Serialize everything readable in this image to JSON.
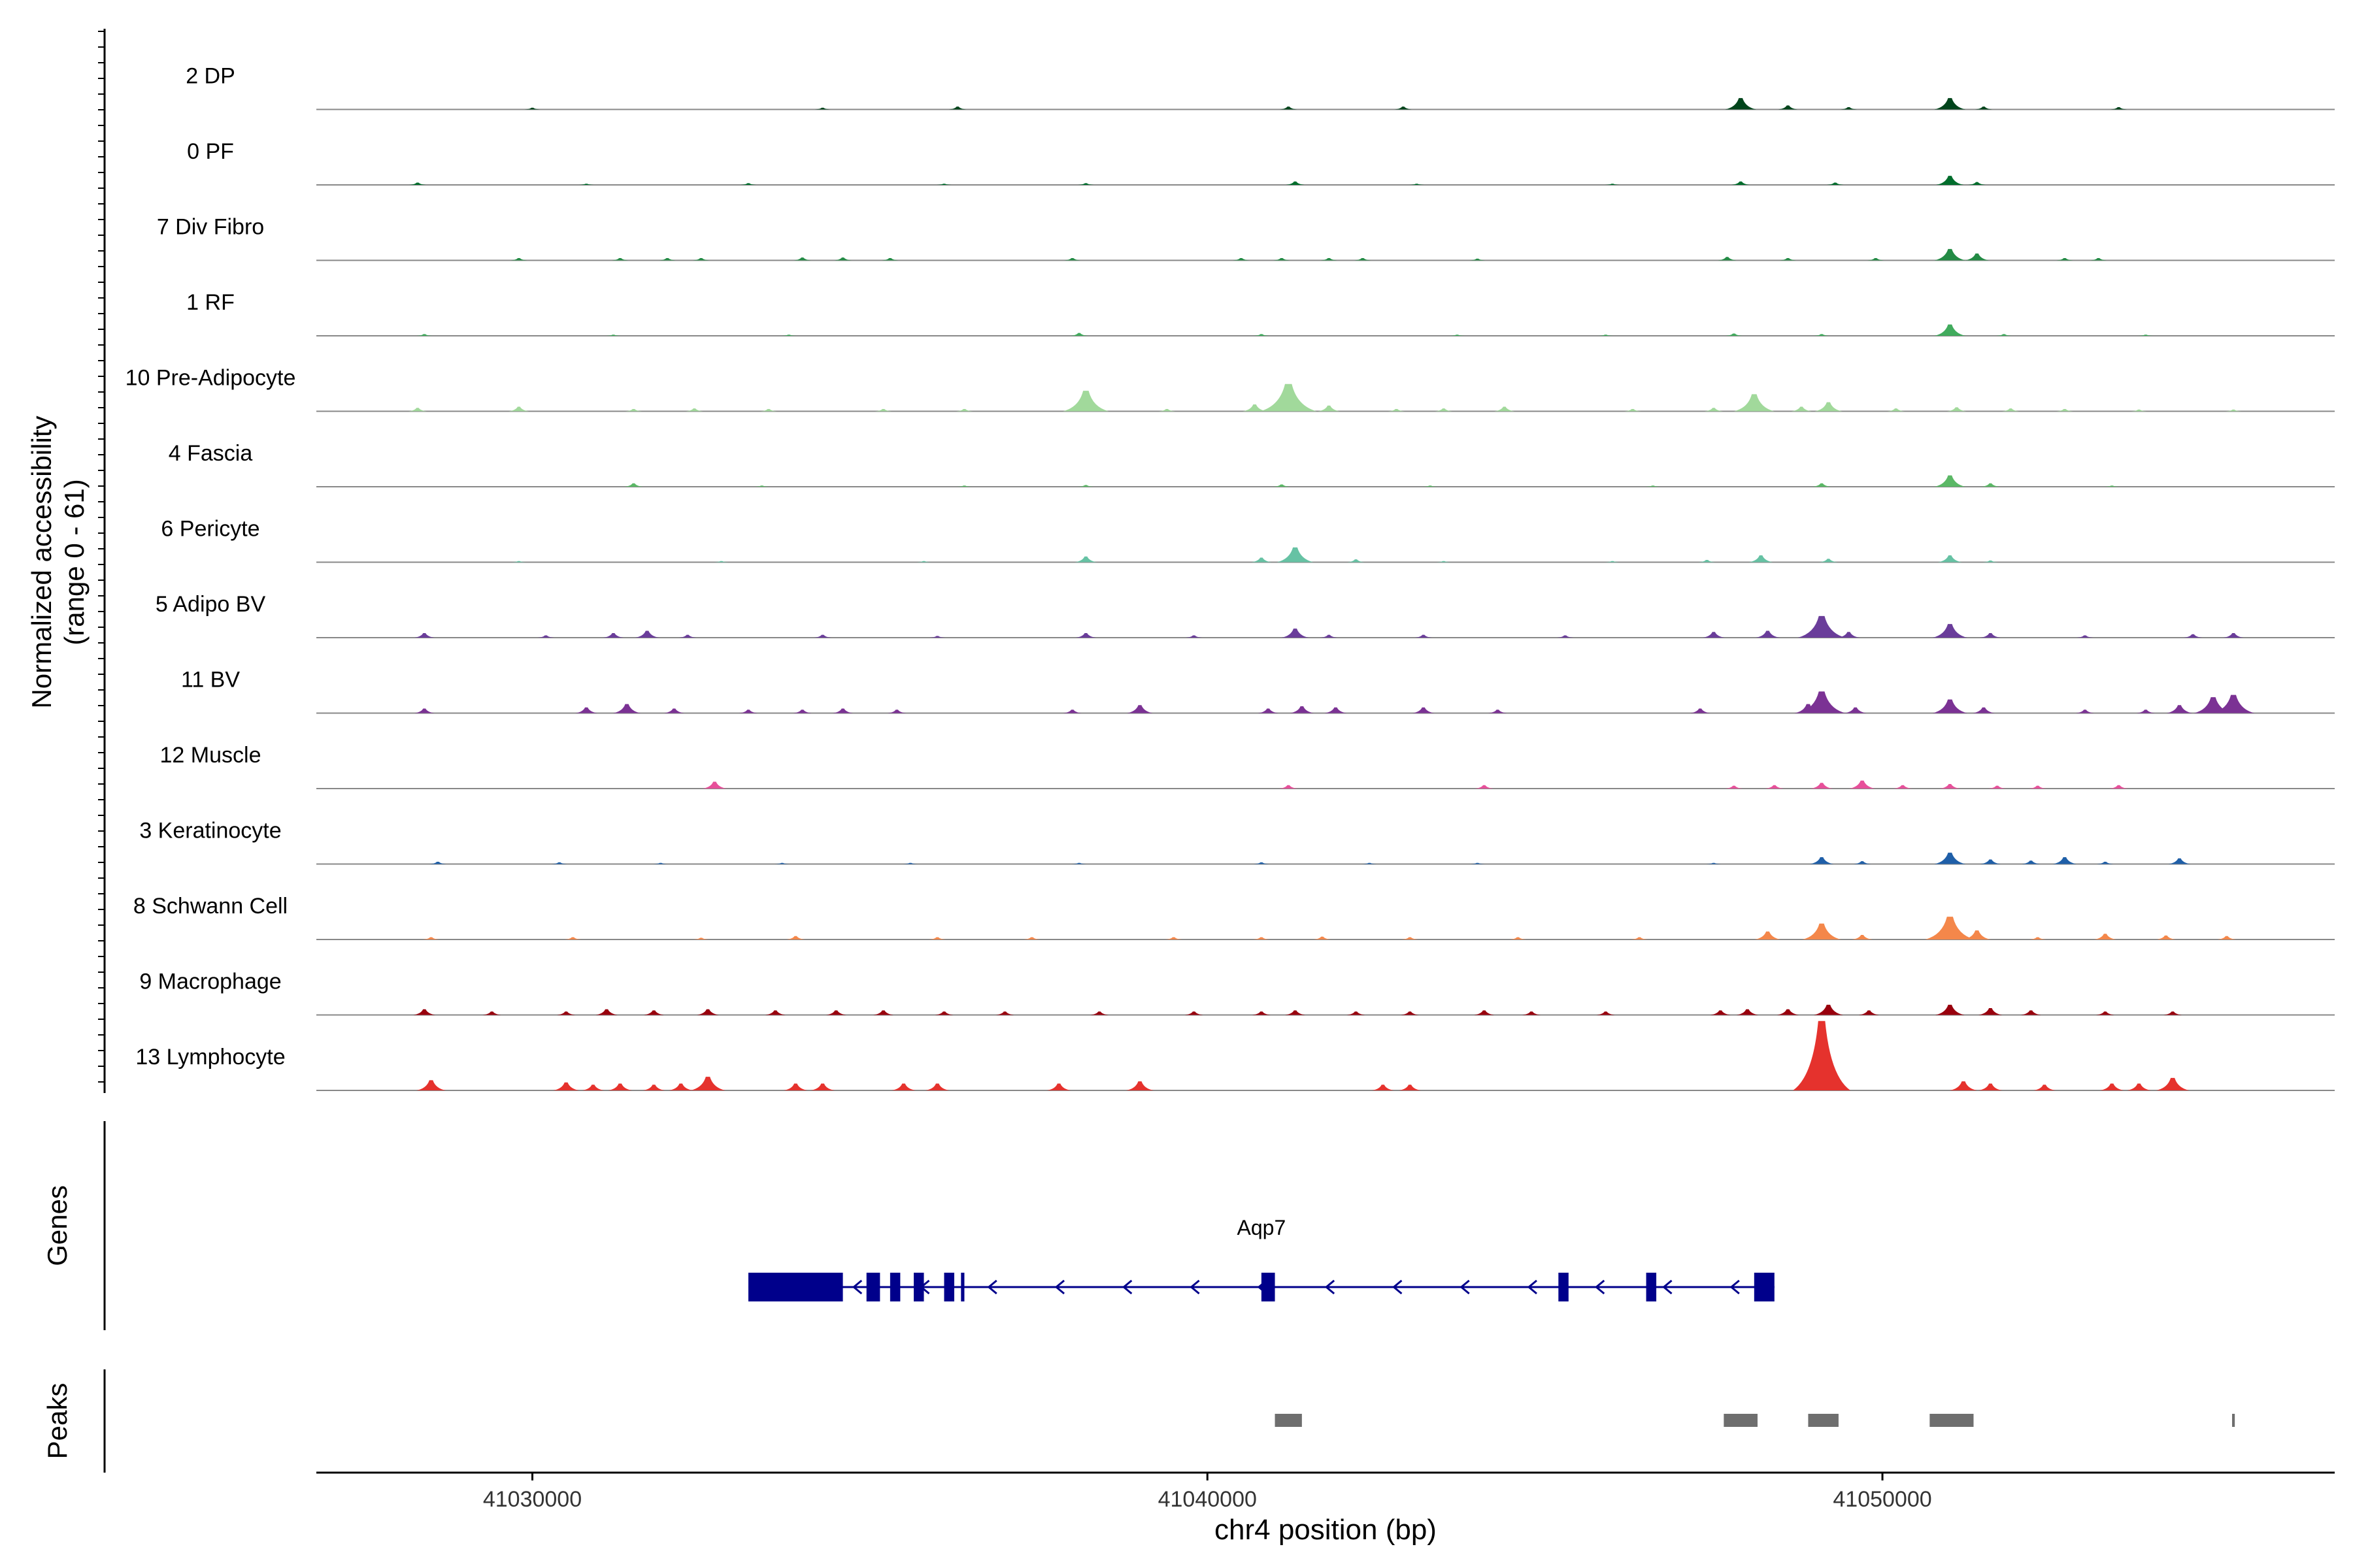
{
  "chart_data": {
    "type": "area",
    "ylabel": "Normalized accessibility",
    "ylabel_range": "(range 0 - 61)",
    "xlabel": "chr4 position (bp)",
    "xlim": [
      41026800,
      41056700
    ],
    "ylim": [
      0,
      61
    ],
    "x_ticks": [
      41030000,
      41040000,
      41050000
    ],
    "x_tick_labels": [
      "41030000",
      "41040000",
      "41050000"
    ],
    "grid": false,
    "tracks": [
      {
        "name": "2 DP",
        "color": "#00441b",
        "peaks": [
          [
            41030000,
            1.5
          ],
          [
            41034300,
            1.5
          ],
          [
            41036300,
            2.5
          ],
          [
            41041200,
            2.5
          ],
          [
            41042900,
            2.5
          ],
          [
            41047900,
            10
          ],
          [
            41048600,
            3.5
          ],
          [
            41049500,
            2
          ],
          [
            41051000,
            10
          ],
          [
            41051500,
            2.5
          ],
          [
            41053500,
            2
          ]
        ]
      },
      {
        "name": "0 PF",
        "color": "#006d2c",
        "peaks": [
          [
            41028300,
            2
          ],
          [
            41030800,
            1
          ],
          [
            41033200,
            1.5
          ],
          [
            41036100,
            1
          ],
          [
            41038200,
            1.5
          ],
          [
            41041300,
            3
          ],
          [
            41043100,
            1
          ],
          [
            41046000,
            1
          ],
          [
            41047900,
            3
          ],
          [
            41049300,
            2
          ],
          [
            41051000,
            8
          ],
          [
            41051400,
            2.5
          ]
        ]
      },
      {
        "name": "7 Div Fibro",
        "color": "#238b45",
        "peaks": [
          [
            41029800,
            2
          ],
          [
            41031300,
            2
          ],
          [
            41032000,
            2
          ],
          [
            41032500,
            2
          ],
          [
            41034000,
            2.5
          ],
          [
            41034600,
            2.5
          ],
          [
            41035300,
            2
          ],
          [
            41038000,
            2
          ],
          [
            41040500,
            2
          ],
          [
            41041100,
            2
          ],
          [
            41041800,
            2
          ],
          [
            41042300,
            2
          ],
          [
            41044000,
            1.5
          ],
          [
            41047700,
            3
          ],
          [
            41048600,
            2
          ],
          [
            41049900,
            2
          ],
          [
            41051000,
            10
          ],
          [
            41051400,
            6
          ],
          [
            41052700,
            2
          ],
          [
            41053200,
            2
          ]
        ]
      },
      {
        "name": "1 RF",
        "color": "#41ab5d",
        "peaks": [
          [
            41028400,
            1.5
          ],
          [
            41031200,
            1
          ],
          [
            41033800,
            1
          ],
          [
            41038100,
            2.5
          ],
          [
            41040800,
            1.5
          ],
          [
            41043700,
            1
          ],
          [
            41045900,
            1
          ],
          [
            41047800,
            2
          ],
          [
            41049100,
            1.5
          ],
          [
            41051000,
            10
          ],
          [
            41051800,
            1.5
          ],
          [
            41053900,
            1
          ]
        ]
      },
      {
        "name": "10 Pre-Adipocyte",
        "color": "#a1d99b",
        "peaks": [
          [
            41028300,
            3
          ],
          [
            41029800,
            4
          ],
          [
            41031500,
            2
          ],
          [
            41032400,
            2.5
          ],
          [
            41033500,
            2
          ],
          [
            41035200,
            2
          ],
          [
            41036400,
            2
          ],
          [
            41038200,
            18
          ],
          [
            41039400,
            2
          ],
          [
            41040700,
            6
          ],
          [
            41041200,
            24
          ],
          [
            41041800,
            5
          ],
          [
            41042800,
            2
          ],
          [
            41043500,
            2.5
          ],
          [
            41044400,
            4
          ],
          [
            41046300,
            2
          ],
          [
            41047500,
            3
          ],
          [
            41048100,
            15
          ],
          [
            41048800,
            4
          ],
          [
            41049200,
            8
          ],
          [
            41050200,
            2.5
          ],
          [
            41051100,
            3.5
          ],
          [
            41051900,
            2.5
          ],
          [
            41052700,
            2
          ],
          [
            41053800,
            1.5
          ],
          [
            41055200,
            1.5
          ]
        ]
      },
      {
        "name": "4 Fascia",
        "color": "#5bb866",
        "peaks": [
          [
            41031500,
            3
          ],
          [
            41033400,
            1
          ],
          [
            41036400,
            1
          ],
          [
            41038200,
            1.5
          ],
          [
            41041100,
            2
          ],
          [
            41043300,
            1
          ],
          [
            41046600,
            1
          ],
          [
            41049100,
            3
          ],
          [
            41051000,
            10
          ],
          [
            41051600,
            3
          ],
          [
            41053400,
            1
          ]
        ]
      },
      {
        "name": "6 Pericyte",
        "color": "#66c2a4",
        "peaks": [
          [
            41029800,
            1
          ],
          [
            41032800,
            1
          ],
          [
            41035800,
            1
          ],
          [
            41038200,
            5
          ],
          [
            41040800,
            4
          ],
          [
            41041300,
            13
          ],
          [
            41042200,
            2.5
          ],
          [
            41043500,
            1
          ],
          [
            41046000,
            1
          ],
          [
            41047400,
            2
          ],
          [
            41048200,
            6
          ],
          [
            41049200,
            3
          ],
          [
            41051000,
            6
          ],
          [
            41051600,
            1.5
          ]
        ]
      },
      {
        "name": "5 Adipo BV",
        "color": "#6a3d9a",
        "peaks": [
          [
            41028400,
            4
          ],
          [
            41030200,
            2
          ],
          [
            41031200,
            4
          ],
          [
            41031700,
            6
          ],
          [
            41032300,
            2.5
          ],
          [
            41034300,
            2.5
          ],
          [
            41036000,
            1.5
          ],
          [
            41038200,
            4
          ],
          [
            41039800,
            2
          ],
          [
            41041300,
            8
          ],
          [
            41041800,
            2.5
          ],
          [
            41043200,
            2.5
          ],
          [
            41045300,
            2
          ],
          [
            41047500,
            5
          ],
          [
            41048300,
            6
          ],
          [
            41049100,
            19
          ],
          [
            41049500,
            5
          ],
          [
            41051000,
            12
          ],
          [
            41051600,
            4
          ],
          [
            41053000,
            2
          ],
          [
            41054600,
            3
          ],
          [
            41055200,
            4
          ]
        ]
      },
      {
        "name": "11 BV",
        "color": "#7b3294",
        "peaks": [
          [
            41028400,
            4
          ],
          [
            41030800,
            5
          ],
          [
            41031400,
            8
          ],
          [
            41032100,
            4
          ],
          [
            41033200,
            3
          ],
          [
            41034000,
            3
          ],
          [
            41034600,
            4
          ],
          [
            41035400,
            3
          ],
          [
            41038000,
            3
          ],
          [
            41039000,
            7
          ],
          [
            41040900,
            4
          ],
          [
            41041400,
            6
          ],
          [
            41041900,
            5
          ],
          [
            41043200,
            5
          ],
          [
            41044300,
            3
          ],
          [
            41047300,
            4
          ],
          [
            41048900,
            8
          ],
          [
            41049100,
            19
          ],
          [
            41049600,
            5
          ],
          [
            41051000,
            12
          ],
          [
            41051500,
            5
          ],
          [
            41053000,
            3
          ],
          [
            41053900,
            3
          ],
          [
            41054400,
            7
          ],
          [
            41054900,
            14
          ],
          [
            41055200,
            16
          ]
        ]
      },
      {
        "name": "12 Muscle",
        "color": "#e7509a",
        "peaks": [
          [
            41032700,
            6
          ],
          [
            41041200,
            3
          ],
          [
            41044100,
            3
          ],
          [
            41047800,
            2.5
          ],
          [
            41048400,
            3
          ],
          [
            41049100,
            5
          ],
          [
            41049700,
            7
          ],
          [
            41050300,
            3
          ],
          [
            41051000,
            4
          ],
          [
            41051700,
            2.5
          ],
          [
            41052300,
            2.5
          ],
          [
            41053500,
            3
          ]
        ]
      },
      {
        "name": "3 Keratinocyte",
        "color": "#1f5fa8",
        "peaks": [
          [
            41028600,
            2
          ],
          [
            41030400,
            1.5
          ],
          [
            41031900,
            1
          ],
          [
            41033700,
            1
          ],
          [
            41035600,
            1
          ],
          [
            41038100,
            1
          ],
          [
            41040800,
            1.5
          ],
          [
            41042400,
            1
          ],
          [
            41044000,
            1
          ],
          [
            41047500,
            1
          ],
          [
            41049100,
            6
          ],
          [
            41049700,
            2.5
          ],
          [
            41051000,
            10
          ],
          [
            41051600,
            4
          ],
          [
            41052200,
            3
          ],
          [
            41052700,
            6
          ],
          [
            41053300,
            2
          ],
          [
            41054400,
            5
          ]
        ]
      },
      {
        "name": "8 Schwann Cell",
        "color": "#f4874a",
        "peaks": [
          [
            41028500,
            2
          ],
          [
            41030600,
            2
          ],
          [
            41032500,
            1.5
          ],
          [
            41033900,
            3
          ],
          [
            41036000,
            2
          ],
          [
            41037400,
            2
          ],
          [
            41039500,
            2
          ],
          [
            41040800,
            2
          ],
          [
            41041700,
            2.5
          ],
          [
            41043000,
            2
          ],
          [
            41044600,
            2
          ],
          [
            41046400,
            2
          ],
          [
            41048300,
            7
          ],
          [
            41049100,
            14
          ],
          [
            41049700,
            4
          ],
          [
            41051000,
            20
          ],
          [
            41051400,
            8
          ],
          [
            41052300,
            2
          ],
          [
            41053300,
            5
          ],
          [
            41054200,
            3.5
          ],
          [
            41055100,
            3
          ]
        ]
      },
      {
        "name": "9 Macrophage",
        "color": "#99000d",
        "peaks": [
          [
            41028400,
            5
          ],
          [
            41029400,
            3
          ],
          [
            41030500,
            3
          ],
          [
            41031100,
            5
          ],
          [
            41031800,
            4
          ],
          [
            41032600,
            5
          ],
          [
            41033600,
            4
          ],
          [
            41034500,
            4
          ],
          [
            41035200,
            4
          ],
          [
            41036100,
            3
          ],
          [
            41037000,
            3
          ],
          [
            41038400,
            3
          ],
          [
            41039800,
            3
          ],
          [
            41040800,
            3
          ],
          [
            41041300,
            4
          ],
          [
            41042200,
            3
          ],
          [
            41043000,
            3
          ],
          [
            41044100,
            4
          ],
          [
            41044800,
            3
          ],
          [
            41045900,
            3
          ],
          [
            41047600,
            4
          ],
          [
            41048000,
            5
          ],
          [
            41048600,
            5
          ],
          [
            41049200,
            9
          ],
          [
            41049800,
            4
          ],
          [
            41051000,
            9
          ],
          [
            41051600,
            6
          ],
          [
            41052200,
            4
          ],
          [
            41053300,
            3
          ],
          [
            41054300,
            3
          ]
        ]
      },
      {
        "name": "13 Lymphocyte",
        "color": "#e5322d",
        "peaks": [
          [
            41028500,
            9
          ],
          [
            41030500,
            7
          ],
          [
            41030900,
            5
          ],
          [
            41031300,
            6
          ],
          [
            41031800,
            5
          ],
          [
            41032200,
            6
          ],
          [
            41032600,
            12
          ],
          [
            41033900,
            6
          ],
          [
            41034300,
            6
          ],
          [
            41035500,
            6
          ],
          [
            41036000,
            6
          ],
          [
            41037800,
            6
          ],
          [
            41039000,
            8
          ],
          [
            41042600,
            5
          ],
          [
            41043000,
            5
          ],
          [
            41049100,
            61
          ],
          [
            41051200,
            8
          ],
          [
            41051600,
            6
          ],
          [
            41052400,
            5
          ],
          [
            41053400,
            6
          ],
          [
            41053800,
            6
          ],
          [
            41054300,
            11
          ]
        ]
      }
    ],
    "genes": {
      "label": "Genes",
      "gene_name": "Aqp7",
      "color": "#00008b",
      "strand": "-",
      "start": 41033200,
      "end": 41048400,
      "exons": [
        [
          41033200,
          41034600
        ],
        [
          41034950,
          41035150
        ],
        [
          41035300,
          41035450
        ],
        [
          41035650,
          41035800
        ],
        [
          41036100,
          41036250
        ],
        [
          41036350,
          41036400
        ],
        [
          41040800,
          41041000
        ],
        [
          41045200,
          41045350
        ],
        [
          41046500,
          41046650
        ],
        [
          41048100,
          41048400
        ]
      ]
    },
    "peaks_track": {
      "label": "Peaks",
      "color": "#6e6e6e",
      "regions": [
        [
          41041000,
          41041400
        ],
        [
          41047650,
          41048150
        ],
        [
          41048900,
          41049350
        ],
        [
          41050700,
          41051350
        ],
        [
          41055180,
          41055220
        ]
      ]
    }
  }
}
